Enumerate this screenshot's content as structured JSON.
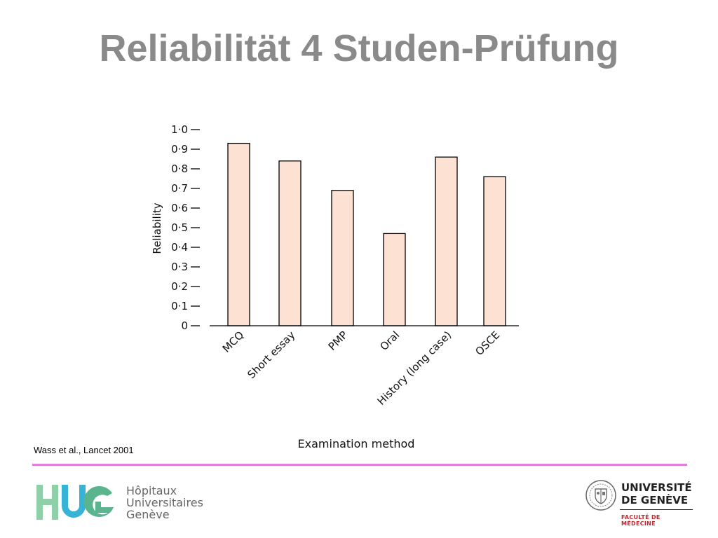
{
  "slide": {
    "title": "Reliabilität 4 Studen-Prüfung",
    "citation": "Wass et al., Lancet 2001"
  },
  "chart_data": {
    "type": "bar",
    "categories": [
      "MCQ",
      "Short essay",
      "PMP",
      "Oral",
      "History (long case)",
      "OSCE"
    ],
    "values": [
      0.93,
      0.84,
      0.69,
      0.47,
      0.86,
      0.76
    ],
    "ylabel": "Reliability",
    "xlabel": "Examination method",
    "ylim": [
      0,
      1.0
    ],
    "yticks": [
      "0",
      "0·1",
      "0·2",
      "0·3",
      "0·4",
      "0·5",
      "0·6",
      "0·7",
      "0·8",
      "0·9",
      "1·0"
    ],
    "grid": false,
    "bar_color": "#fde2d4",
    "bar_stroke": "#000000"
  },
  "logos": {
    "hug": {
      "mark": "HUG",
      "line1": "Hôpitaux",
      "line2": "Universitaires",
      "line3": "Genève",
      "colors": [
        "#8fd0a8",
        "#37b3d8",
        "#5ab58f"
      ]
    },
    "unige": {
      "line1": "UNIVERSITÉ",
      "line2": "DE GENÈVE",
      "faculty": "FACULTÉ DE MÉDECINE",
      "faculty_color": "#c0272d"
    }
  }
}
